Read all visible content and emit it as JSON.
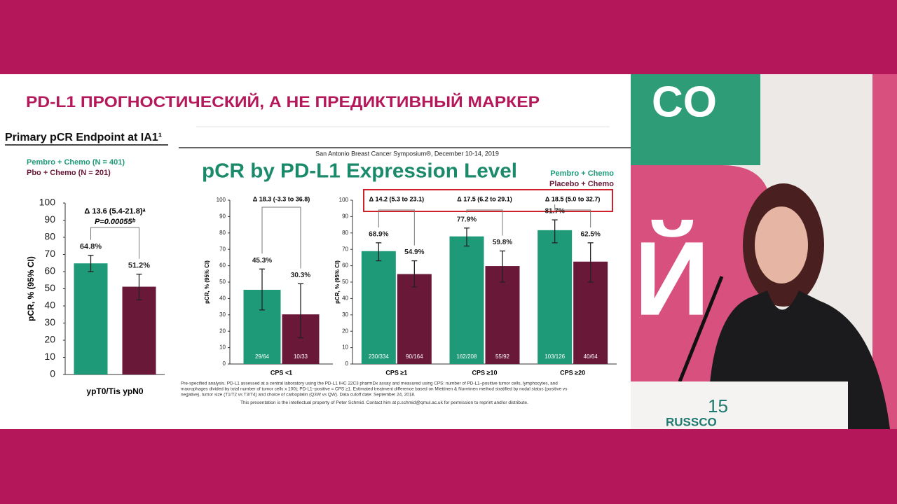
{
  "slide": {
    "heading": "PD-L1 ПРОГНОСТИЧЕСКИЙ, А НЕ ПРЕДИКТИВНЫЙ МАРКЕР",
    "subtitle": "Primary pCR Endpoint at IA1¹",
    "conference": "San Antonio Breast Cancer Symposium®, December 10-14, 2019",
    "title": "pCR by PD-L1 Expression Level",
    "footnote": [
      "Pre-specified analysis. PD-L1 assessed at a central laboratory using the PD-L1 IHC 22C3 pharmDx assay and measured using CPS: number of PD-L1–positive tumor cells, lymphocytes, and",
      "macrophages divided by total number of tumor cells x 100); PD-L1–positive = CPS ≥1. Estimated treatment difference based on Miettinen & Nurminen method stratified by nodal status (positive vs",
      "negative), tumor size (T1/T2 vs T3/T4) and choice of carboplatin (Q3W vs QW). Data cutoff date: September 24, 2018."
    ],
    "copyright": "This presentation is the intellectual property of Peter Schmid. Contact him at p.schmid@qmul.ac.uk for permission to reprint and/or distribute."
  },
  "chart_data": [
    {
      "type": "bar",
      "ylabel": "pCR, % (95% CI)",
      "categories": [
        "ypT0/Tis ypN0"
      ],
      "series": [
        {
          "name": "Pembro + Chemo (N = 401)",
          "color": "#1f9a78",
          "values": [
            64.8
          ],
          "value_labels": [
            "64.8%"
          ],
          "ci_low": [
            60.0
          ],
          "ci_high": [
            69.5
          ]
        },
        {
          "name": "Pbo + Chemo (N = 201)",
          "color": "#6a1838",
          "values": [
            51.2
          ],
          "value_labels": [
            "51.2%"
          ],
          "ci_low": [
            43.5
          ],
          "ci_high": [
            58.5
          ]
        }
      ],
      "ylim": [
        0,
        100
      ],
      "yticks": [
        0,
        10,
        20,
        30,
        40,
        50,
        60,
        70,
        80,
        90,
        100
      ],
      "delta": "Δ 13.6 (5.4-21.8)ᵃ",
      "p_value": "P=0.00055ᵇ"
    },
    {
      "type": "bar",
      "ylabel": "pCR, % (95% CI)",
      "categories": [
        "CPS <1"
      ],
      "series": [
        {
          "color": "#1f9a78",
          "values": [
            45.3
          ],
          "value_labels": [
            "45.3%"
          ],
          "ci_low": [
            33.0
          ],
          "ci_high": [
            58.0
          ],
          "counts": [
            "29/64"
          ]
        },
        {
          "color": "#6a1838",
          "values": [
            30.3
          ],
          "value_labels": [
            "30.3%"
          ],
          "ci_low": [
            16.0
          ],
          "ci_high": [
            49.0
          ],
          "counts": [
            "10/33"
          ]
        }
      ],
      "ylim": [
        0,
        100
      ],
      "yticks": [
        0,
        10,
        20,
        30,
        40,
        50,
        60,
        70,
        80,
        90,
        100
      ],
      "deltas": [
        "Δ 18.3 (-3.3 to 36.8)"
      ]
    },
    {
      "type": "bar",
      "ylabel": "pCR, % (95% CI)",
      "categories": [
        "CPS ≥1",
        "CPS ≥10",
        "CPS ≥20"
      ],
      "series": [
        {
          "name": "Pembro + Chemo",
          "color": "#1f9a78",
          "values": [
            68.9,
            77.9,
            81.7
          ],
          "value_labels": [
            "68.9%",
            "77.9%",
            "81.7%"
          ],
          "ci_low": [
            63.0,
            72.0,
            74.0
          ],
          "ci_high": [
            74.0,
            83.0,
            88.0
          ],
          "counts": [
            "230/334",
            "162/208",
            "103/126"
          ]
        },
        {
          "name": "Placebo + Chemo",
          "color": "#6a1838",
          "values": [
            54.9,
            59.8,
            62.5
          ],
          "value_labels": [
            "54.9%",
            "59.8%",
            "62.5%"
          ],
          "ci_low": [
            47.0,
            50.0,
            50.0
          ],
          "ci_high": [
            63.0,
            69.0,
            74.0
          ],
          "counts": [
            "90/164",
            "55/92",
            "40/64"
          ]
        }
      ],
      "ylim": [
        0,
        100
      ],
      "yticks": [
        0,
        10,
        20,
        30,
        40,
        50,
        60,
        70,
        80,
        90,
        100
      ],
      "deltas": [
        "Δ 14.2 (5.3 to 23.1)",
        "Δ 17.5 (6.2 to 29.1)",
        "Δ 18.5 (5.0 to 32.7)"
      ]
    }
  ],
  "video": {
    "backdrop_text": "CO",
    "backdrop_letter": "Й",
    "podium_logo": "RUSSCO",
    "podium_number": "15"
  }
}
